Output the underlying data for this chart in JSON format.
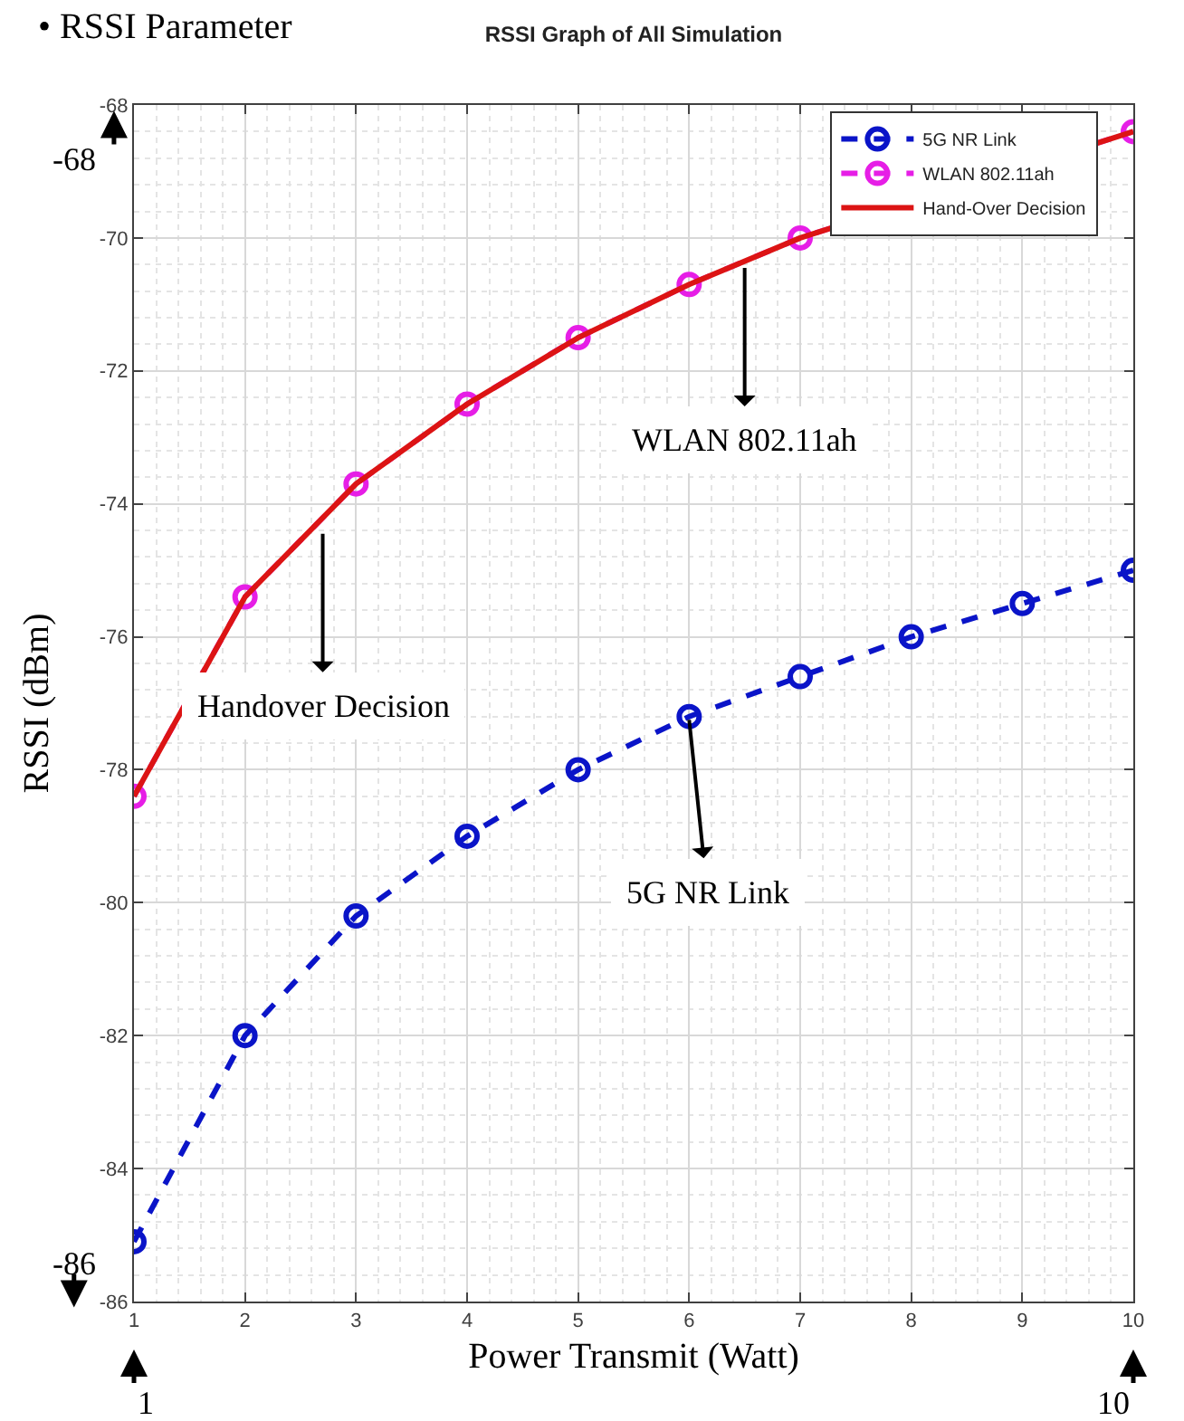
{
  "chart_data": {
    "type": "line",
    "title": "RSSI Graph of All Simulation",
    "subtitle": "• RSSI Parameter",
    "xlabel": "Power Transmit (Watt)",
    "ylabel": "RSSI (dBm)",
    "x": [
      1,
      2,
      3,
      4,
      5,
      6,
      7,
      8,
      9,
      10
    ],
    "series": [
      {
        "name": "5G NR Link",
        "color": "#0a14c8",
        "marker": "circle",
        "line_style": "dashed",
        "values": [
          -85.1,
          -82.0,
          -80.2,
          -79.0,
          -78.0,
          -77.2,
          -76.6,
          -76.0,
          -75.5,
          -75.0
        ]
      },
      {
        "name": "WLAN 802.11ah",
        "color": "#e61ee6",
        "marker": "circle",
        "line_style": "dashed",
        "values": [
          -78.4,
          -75.4,
          -73.7,
          -72.5,
          -71.5,
          -70.7,
          -70.0,
          null,
          null,
          -68.4
        ]
      },
      {
        "name": "Hand-Over Decision",
        "color": "#dc1414",
        "marker": "none",
        "line_style": "solid",
        "values": [
          -78.4,
          -75.4,
          -73.7,
          -72.5,
          -71.5,
          -70.7,
          -70.0,
          null,
          null,
          -68.4
        ]
      }
    ],
    "xlim": [
      1,
      10
    ],
    "xticks": [
      1,
      2,
      3,
      4,
      5,
      6,
      7,
      8,
      9,
      10
    ],
    "ylim": [
      -86,
      -68
    ],
    "yticks": [
      -86,
      -84,
      -82,
      -80,
      -78,
      -76,
      -74,
      -72,
      -70,
      -68
    ],
    "grid": true,
    "legend": "top right",
    "annotations": [
      {
        "text": "WLAN 802.11ah",
        "x": 6.5,
        "y": -70.45
      },
      {
        "text": "Handover Decision",
        "x": 2.7,
        "y": -74.45
      },
      {
        "text": "5G NR Link",
        "x": 6,
        "y": -77.25
      },
      "-68",
      "-86",
      "1",
      "10"
    ]
  }
}
